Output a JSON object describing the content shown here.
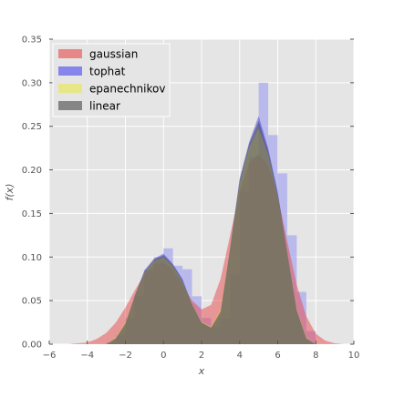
{
  "chart_data": {
    "type": "area",
    "xlabel": "x",
    "ylabel": "f(x)",
    "xlim": [
      -6,
      10
    ],
    "ylim": [
      0,
      0.35
    ],
    "xticks": [
      -6,
      -4,
      -2,
      0,
      2,
      4,
      6,
      8,
      10
    ],
    "yticks": [
      0.0,
      0.05,
      0.1,
      0.15,
      0.2,
      0.25,
      0.3,
      0.35
    ],
    "xtick_labels": [
      "−6",
      "−4",
      "−2",
      "0",
      "2",
      "4",
      "6",
      "8",
      "10"
    ],
    "ytick_labels": [
      "0.00",
      "0.05",
      "0.10",
      "0.15",
      "0.20",
      "0.25",
      "0.30",
      "0.35"
    ],
    "grid": true,
    "legend_position": "top-left",
    "histogram": {
      "bin_edges": [
        -3,
        -2.5,
        -2,
        -1.5,
        -1,
        -0.5,
        0,
        0.5,
        1,
        1.5,
        2,
        2.5,
        3,
        3.5,
        4,
        4.5,
        5,
        5.5,
        6,
        6.5,
        7,
        7.5,
        8
      ],
      "values": [
        0.002,
        0.01,
        0.03,
        0.055,
        0.085,
        0.1,
        0.11,
        0.09,
        0.086,
        0.055,
        0.03,
        0.02,
        0.03,
        0.08,
        0.175,
        0.215,
        0.3,
        0.24,
        0.196,
        0.125,
        0.06,
        0.015
      ],
      "color": "#aaaaee"
    },
    "x": [
      -5,
      -4.5,
      -4,
      -3.5,
      -3,
      -2.5,
      -2,
      -1.5,
      -1,
      -0.5,
      0,
      0.5,
      1,
      1.5,
      2,
      2.5,
      3,
      3.5,
      4,
      4.5,
      5,
      5.5,
      6,
      6.5,
      7,
      7.5,
      8,
      8.5,
      9,
      9.5,
      10
    ],
    "series": [
      {
        "name": "gaussian",
        "color": "#e8474a",
        "opacity": 0.5,
        "values": [
          0.0,
          0.001,
          0.002,
          0.006,
          0.013,
          0.025,
          0.042,
          0.062,
          0.08,
          0.092,
          0.094,
          0.085,
          0.068,
          0.05,
          0.04,
          0.045,
          0.075,
          0.125,
          0.175,
          0.208,
          0.218,
          0.205,
          0.17,
          0.118,
          0.068,
          0.032,
          0.012,
          0.004,
          0.001,
          0.0,
          0.0
        ]
      },
      {
        "name": "tophat",
        "color": "#4444ee",
        "opacity": 0.5,
        "values": [
          0.0,
          0.0,
          0.0,
          0.0,
          0.0,
          0.006,
          0.022,
          0.055,
          0.085,
          0.098,
          0.104,
          0.092,
          0.075,
          0.045,
          0.025,
          0.018,
          0.035,
          0.11,
          0.19,
          0.232,
          0.262,
          0.225,
          0.175,
          0.105,
          0.038,
          0.006,
          0.0,
          0.0,
          0.0,
          0.0,
          0.0
        ]
      },
      {
        "name": "epanechnikov",
        "color": "#e8e84a",
        "opacity": 0.5,
        "values": [
          0.0,
          0.0,
          0.0,
          0.0,
          0.0,
          0.008,
          0.025,
          0.055,
          0.082,
          0.096,
          0.1,
          0.09,
          0.072,
          0.046,
          0.026,
          0.02,
          0.04,
          0.11,
          0.185,
          0.226,
          0.248,
          0.218,
          0.17,
          0.105,
          0.04,
          0.008,
          0.0,
          0.0,
          0.0,
          0.0,
          0.0
        ]
      },
      {
        "name": "linear",
        "color": "#444444",
        "opacity": 0.5,
        "values": [
          0.0,
          0.0,
          0.0,
          0.0,
          0.0,
          0.007,
          0.024,
          0.056,
          0.083,
          0.097,
          0.102,
          0.091,
          0.073,
          0.046,
          0.025,
          0.019,
          0.038,
          0.11,
          0.188,
          0.23,
          0.256,
          0.222,
          0.172,
          0.105,
          0.039,
          0.007,
          0.0,
          0.0,
          0.0,
          0.0,
          0.0
        ]
      }
    ]
  }
}
